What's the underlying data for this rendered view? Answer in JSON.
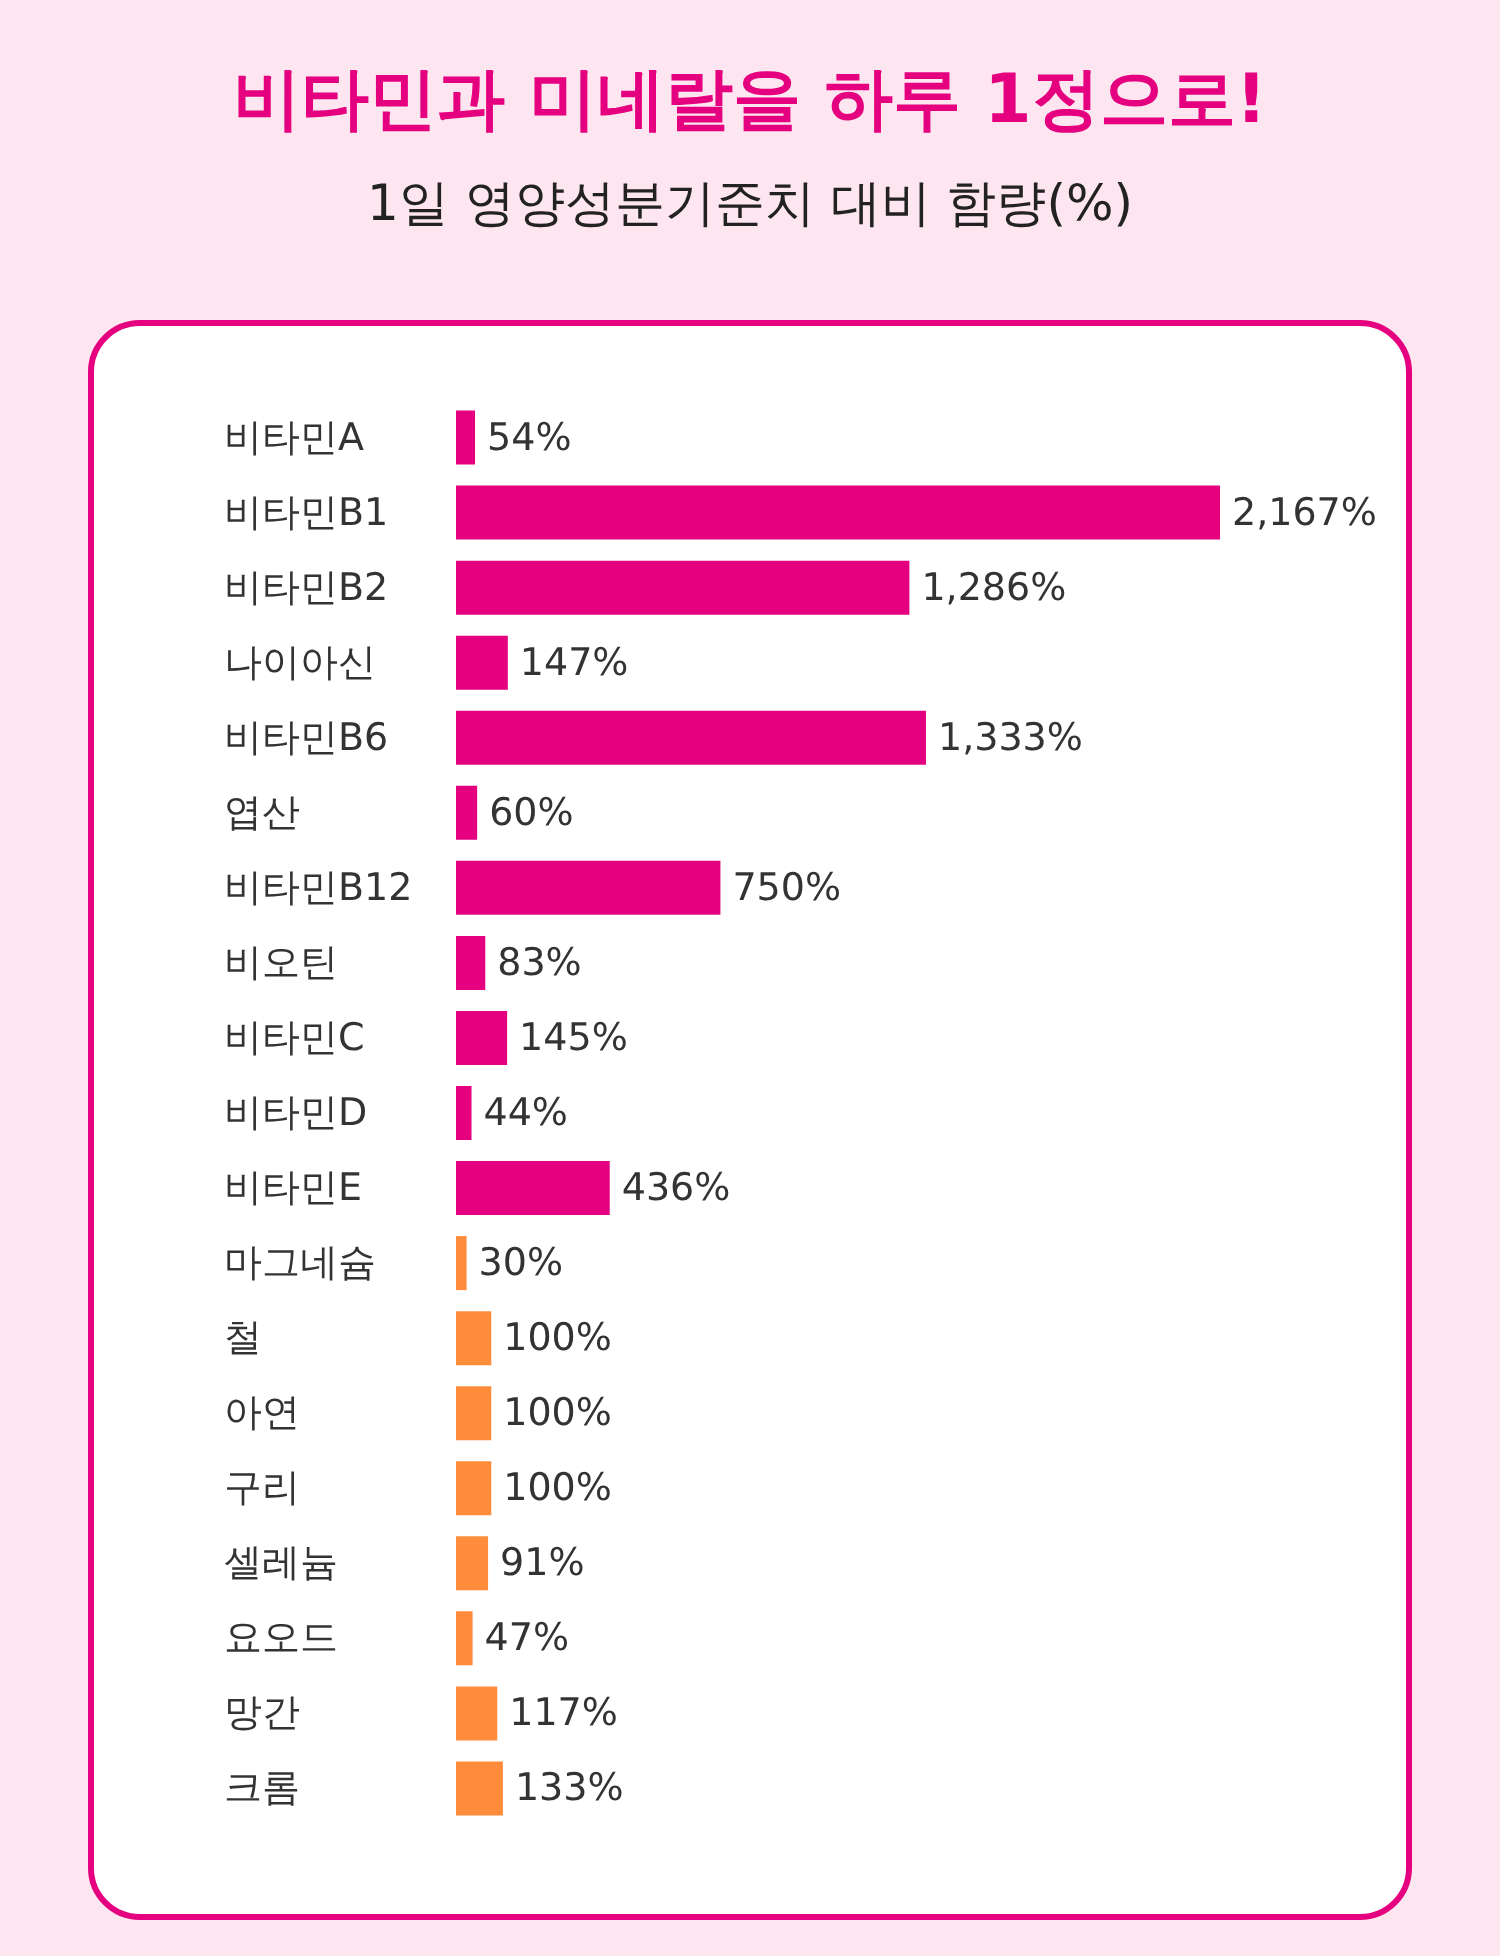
{
  "chart_data": {
    "type": "bar",
    "orientation": "horizontal",
    "title": "비타민과 미네랄을 하루 1정으로!",
    "subtitle": "1일 영양성분기준치 대비 함량(%)",
    "categories": [
      "비타민A",
      "비타민B1",
      "비타민B2",
      "나이아신",
      "비타민B6",
      "엽산",
      "비타민B12",
      "비오틴",
      "비타민C",
      "비타민D",
      "비타민E",
      "마그네슘",
      "철",
      "아연",
      "구리",
      "셀레늄",
      "요오드",
      "망간",
      "크롬"
    ],
    "values": [
      54,
      2167,
      1286,
      147,
      1333,
      60,
      750,
      83,
      145,
      44,
      436,
      30,
      100,
      100,
      100,
      91,
      47,
      117,
      133
    ],
    "value_labels": [
      "54%",
      "2,167%",
      "1,286%",
      "147%",
      "1,333%",
      "60%",
      "750%",
      "83%",
      "145%",
      "44%",
      "436%",
      "30%",
      "100%",
      "100%",
      "100%",
      "91%",
      "47%",
      "117%",
      "133%"
    ],
    "colors": [
      "#e4007f",
      "#e4007f",
      "#e4007f",
      "#e4007f",
      "#e4007f",
      "#e4007f",
      "#e4007f",
      "#e4007f",
      "#e4007f",
      "#e4007f",
      "#e4007f",
      "#ff8c3b",
      "#ff8c3b",
      "#ff8c3b",
      "#ff8c3b",
      "#ff8c3b",
      "#ff8c3b",
      "#ff8c3b",
      "#ff8c3b"
    ]
  }
}
